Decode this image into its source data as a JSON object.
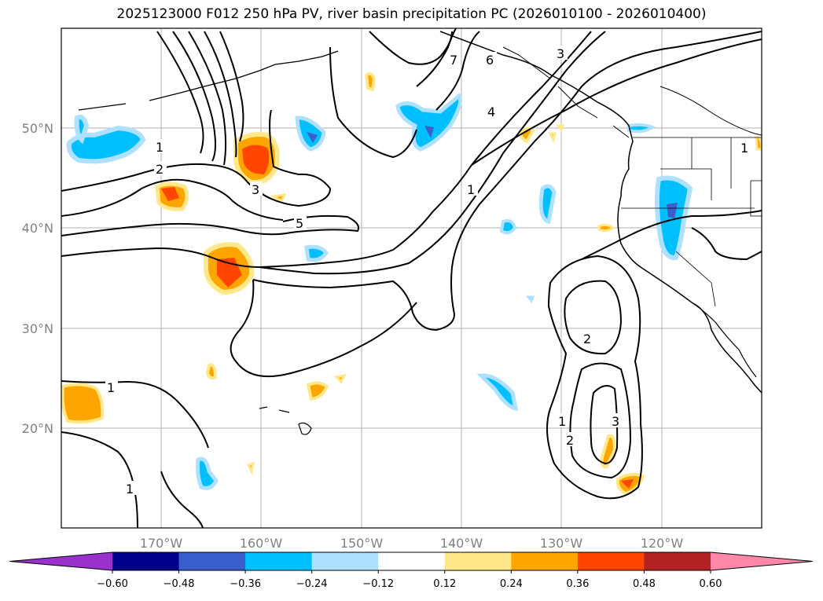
{
  "title": "2025123000 F012 250 hPa PV, river basin precipitation PC (2026010100 - 2026010400)",
  "lat_labels": [
    "50°N",
    "40°N",
    "30°N",
    "20°N"
  ],
  "lon_labels": [
    "170°W",
    "160°W",
    "150°W",
    "140°W",
    "130°W",
    "120°W"
  ],
  "pv_contour_labels": [
    "1",
    "2",
    "3",
    "5",
    "4",
    "6",
    "7",
    "3",
    "1",
    "1",
    "2",
    "1",
    "2",
    "3",
    "1",
    "1"
  ],
  "colorbar": {
    "ticks": [
      "−0.60",
      "−0.48",
      "−0.36",
      "−0.24",
      "−0.12",
      "0.12",
      "0.24",
      "0.36",
      "0.48",
      "0.60"
    ],
    "colors": [
      "#9932CC",
      "#00008B",
      "#3A5FCD",
      "#00BFFF",
      "#ADE1FF",
      "#FFFFFF",
      "#FFE88A",
      "#FFA500",
      "#FF4500",
      "#B22222",
      "#FF88AA"
    ]
  }
}
